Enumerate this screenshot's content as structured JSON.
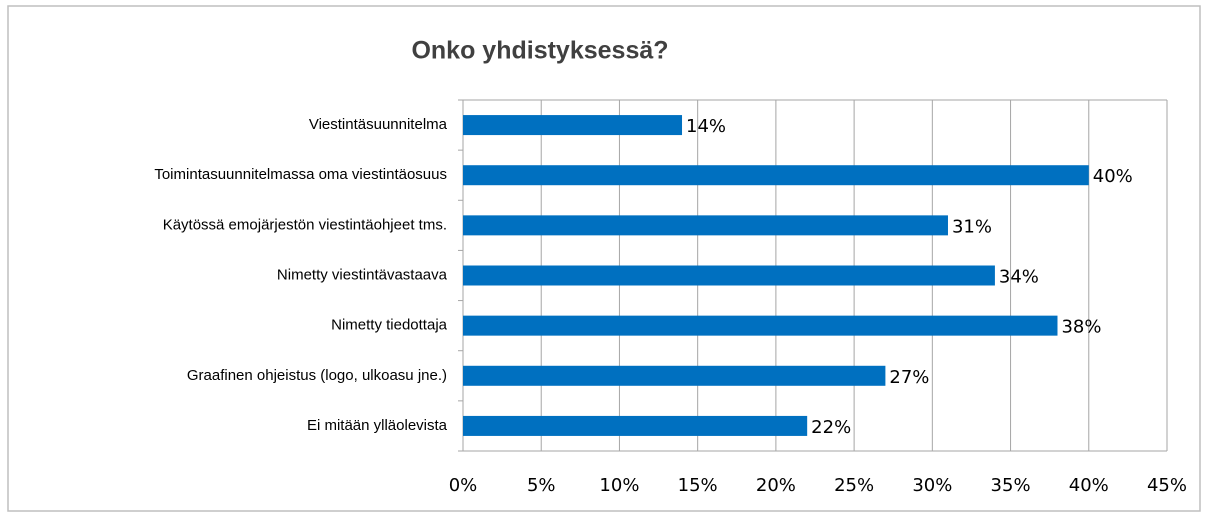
{
  "chart_data": {
    "type": "bar",
    "orientation": "horizontal",
    "title": "Onko yhdistyksessä?",
    "categories": [
      "Viestintäsuunnitelma",
      "Toimintasuunnitelmassa oma viestintäosuus",
      "Käytössä emojärjestön viestintäohjeet tms.",
      "Nimetty viestintävastaava",
      "Nimetty tiedottaja",
      "Graafinen ohjeistus (logo, ulkoasu jne.)",
      "Ei mitään ylläolevista"
    ],
    "values": [
      14,
      40,
      31,
      34,
      38,
      27,
      22
    ],
    "value_labels": [
      "14%",
      "40%",
      "31%",
      "34%",
      "38%",
      "27%",
      "22%"
    ],
    "color": "#0070c0",
    "xlim": [
      0,
      45
    ],
    "xticks": [
      {
        "value": 0,
        "label": "0%"
      },
      {
        "value": 5,
        "label": "5%"
      },
      {
        "value": 10,
        "label": "10%"
      },
      {
        "value": 15,
        "label": "15%"
      },
      {
        "value": 20,
        "label": "20%"
      },
      {
        "value": 25,
        "label": "25%"
      },
      {
        "value": 30,
        "label": "30%"
      },
      {
        "value": 35,
        "label": "35%"
      },
      {
        "value": 40,
        "label": "40%"
      },
      {
        "value": 45,
        "label": "45%"
      }
    ],
    "grid": true
  }
}
